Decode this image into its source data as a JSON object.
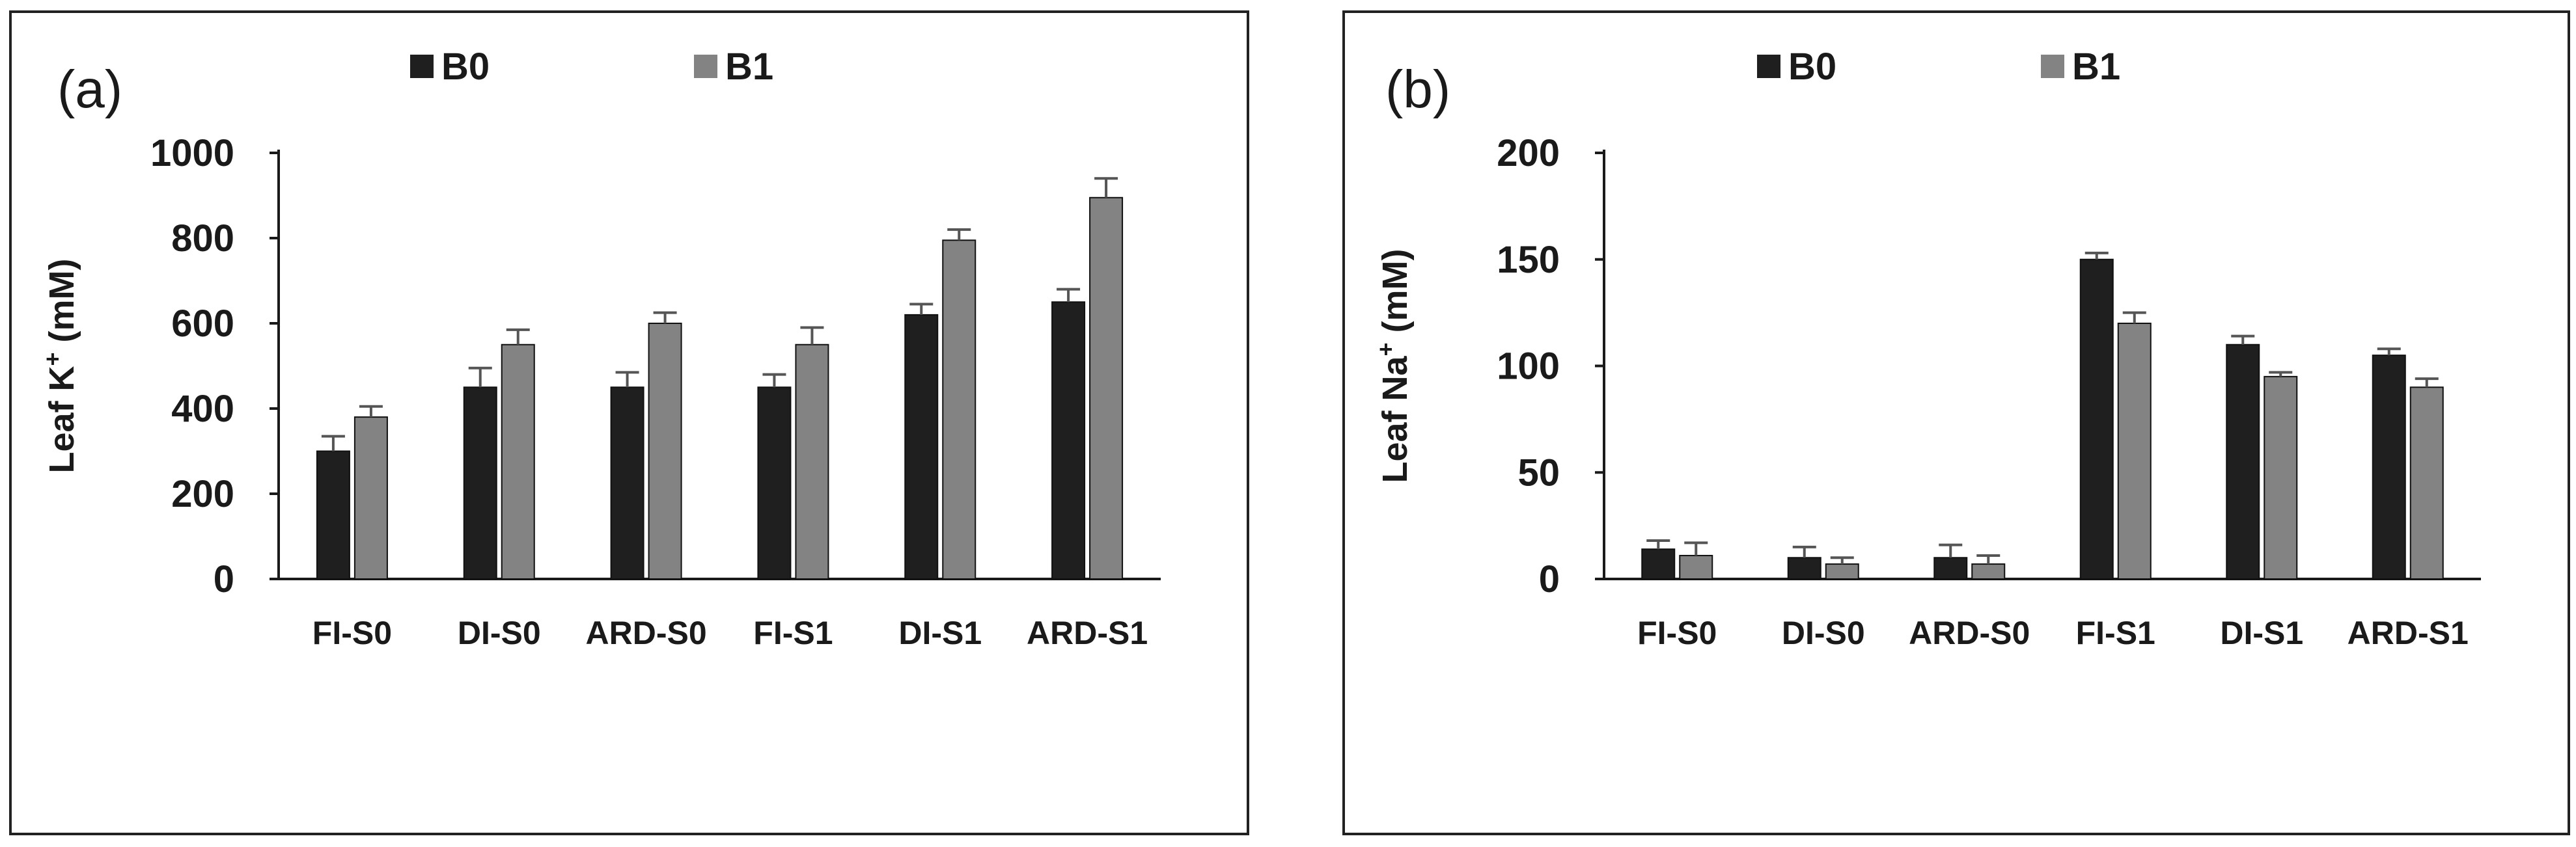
{
  "legend": {
    "b0": "B0",
    "b1": "B1"
  },
  "colors": {
    "b0": "#1f1f1f",
    "b1": "#838383",
    "axis": "#1a1a1a"
  },
  "chart_data": [
    {
      "type": "bar",
      "panel_label": "(a)",
      "title": "",
      "xlabel": "",
      "ylabel_base": "Leaf K",
      "ylabel_sup": "+",
      "ylabel_tail": " (mM)",
      "ylim": [
        0,
        1000
      ],
      "yticks": [
        0,
        200,
        400,
        600,
        800,
        1000
      ],
      "categories": [
        "FI-S0",
        "DI-S0",
        "ARD-S0",
        "FI-S1",
        "DI-S1",
        "ARD-S1"
      ],
      "series": [
        {
          "name": "B0",
          "values": [
            300,
            450,
            450,
            450,
            620,
            650
          ],
          "errors": [
            35,
            45,
            35,
            30,
            25,
            30
          ]
        },
        {
          "name": "B1",
          "values": [
            380,
            550,
            600,
            550,
            795,
            895
          ],
          "errors": [
            25,
            35,
            25,
            40,
            25,
            45
          ]
        }
      ]
    },
    {
      "type": "bar",
      "panel_label": "(b)",
      "title": "",
      "xlabel": "",
      "ylabel_base": "Leaf Na",
      "ylabel_sup": "+",
      "ylabel_tail": " (mM)",
      "ylim": [
        0,
        200
      ],
      "yticks": [
        0,
        50,
        100,
        150,
        200
      ],
      "categories": [
        "FI-S0",
        "DI-S0",
        "ARD-S0",
        "FI-S1",
        "DI-S1",
        "ARD-S1"
      ],
      "series": [
        {
          "name": "B0",
          "values": [
            14,
            10,
            10,
            150,
            110,
            105
          ],
          "errors": [
            4,
            5,
            6,
            3,
            4,
            3
          ]
        },
        {
          "name": "B1",
          "values": [
            11,
            7,
            7,
            120,
            95,
            90
          ],
          "errors": [
            6,
            3,
            4,
            5,
            2,
            4
          ]
        }
      ]
    }
  ]
}
